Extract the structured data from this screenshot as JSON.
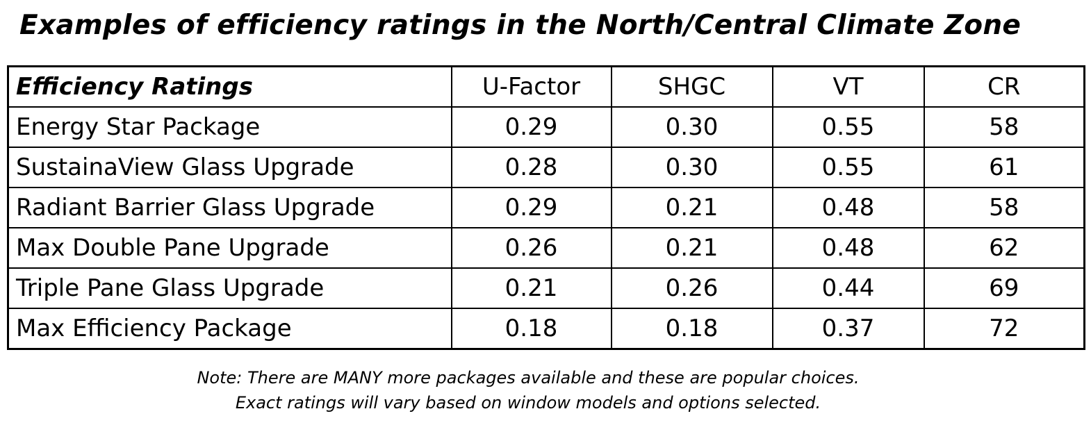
{
  "title": "Examples of efficiency ratings in the North/Central Climate Zone",
  "table": {
    "header": [
      "Efficiency Ratings",
      "U-Factor",
      "SHGC",
      "VT",
      "CR"
    ],
    "rows": [
      [
        "Energy Star Package",
        "0.29",
        "0.30",
        "0.55",
        "58"
      ],
      [
        "SustainaView Glass Upgrade",
        "0.28",
        "0.30",
        "0.55",
        "61"
      ],
      [
        "Radiant Barrier Glass Upgrade",
        "0.29",
        "0.21",
        "0.48",
        "58"
      ],
      [
        "Max Double Pane Upgrade",
        "0.26",
        "0.21",
        "0.48",
        "62"
      ],
      [
        "Triple Pane Glass Upgrade",
        "0.21",
        "0.26",
        "0.44",
        "69"
      ],
      [
        "Max Efficiency Package",
        "0.18",
        "0.18",
        "0.37",
        "72"
      ]
    ]
  },
  "notes": [
    "Note: There are MANY more packages available and these are popular choices.",
    "Exact ratings will vary based on window models and options selected."
  ]
}
